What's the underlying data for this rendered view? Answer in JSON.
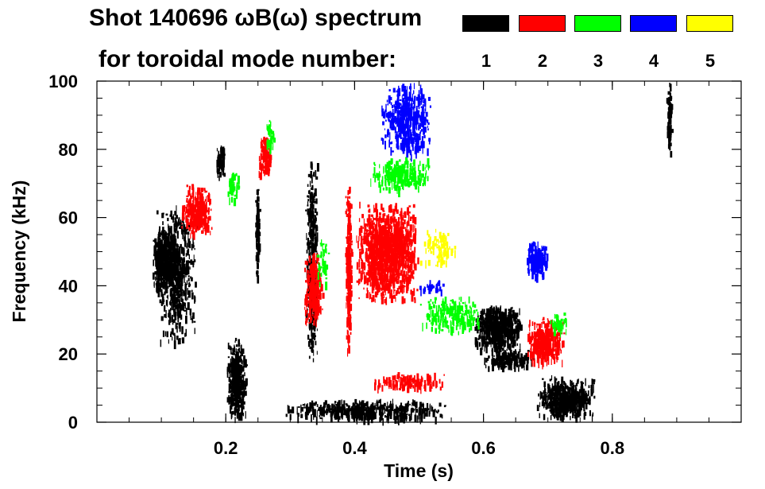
{
  "chart_data": {
    "type": "heatmap",
    "title_line1": "Shot 140696 ωB(ω) spectrum",
    "title_line2": "for toroidal mode number:",
    "xlabel": "Time (s)",
    "ylabel": "Frequency (kHz)",
    "xlim": [
      0.0,
      1.0
    ],
    "ylim": [
      0,
      100
    ],
    "x_ticks": [
      {
        "value": 0.2,
        "label": "0.2"
      },
      {
        "value": 0.4,
        "label": "0.4"
      },
      {
        "value": 0.6,
        "label": "0.6"
      },
      {
        "value": 0.8,
        "label": "0.8"
      }
    ],
    "y_ticks": [
      {
        "value": 0,
        "label": "0"
      },
      {
        "value": 20,
        "label": "20"
      },
      {
        "value": 40,
        "label": "40"
      },
      {
        "value": 60,
        "label": "60"
      },
      {
        "value": 80,
        "label": "80"
      },
      {
        "value": 100,
        "label": "100"
      }
    ],
    "legend": [
      {
        "mode": "1",
        "color": "#000000"
      },
      {
        "mode": "2",
        "color": "#ff0000"
      },
      {
        "mode": "3",
        "color": "#00ff00"
      },
      {
        "mode": "4",
        "color": "#0000ff"
      },
      {
        "mode": "5",
        "color": "#ffff00"
      }
    ],
    "series": [
      {
        "mode": 1,
        "color": "#000000",
        "regions": [
          {
            "t": [
              0.085,
              0.125
            ],
            "f": [
              38,
              58
            ],
            "density": 0.85,
            "name": "n1-blob-48khz"
          },
          {
            "t": [
              0.09,
              0.155
            ],
            "f": [
              22,
              66
            ],
            "density": 0.25,
            "name": "n1-tail-48khz"
          },
          {
            "t": [
              0.185,
              0.197
            ],
            "f": [
              72,
              82
            ],
            "density": 0.9,
            "name": "n1-78khz"
          },
          {
            "t": [
              0.2,
              0.232
            ],
            "f": [
              1,
              25
            ],
            "density": 0.75,
            "name": "n1-chirp-0.2s"
          },
          {
            "t": [
              0.245,
              0.252
            ],
            "f": [
              42,
              70
            ],
            "density": 0.8,
            "name": "n1-line-0.25s"
          },
          {
            "t": [
              0.323,
              0.343
            ],
            "f": [
              15,
              80
            ],
            "density": 0.4,
            "name": "n1-line-0.33s"
          },
          {
            "t": [
              0.29,
              0.55
            ],
            "f": [
              1,
              7
            ],
            "density": 0.45,
            "name": "n1-low-band"
          },
          {
            "t": [
              0.585,
              0.66
            ],
            "f": [
              21,
              35
            ],
            "density": 0.8,
            "name": "n1-27khz"
          },
          {
            "t": [
              0.6,
              0.68
            ],
            "f": [
              16,
              22
            ],
            "density": 0.5,
            "name": "n1-19khz"
          },
          {
            "t": [
              0.68,
              0.775
            ],
            "f": [
              1,
              14
            ],
            "density": 0.6,
            "name": "n1-chirp-0.7s"
          },
          {
            "t": [
              0.883,
              0.892
            ],
            "f": [
              78,
              100
            ],
            "density": 0.6,
            "name": "n1-line-0.89s"
          }
        ]
      },
      {
        "mode": 2,
        "color": "#ff0000",
        "regions": [
          {
            "t": [
              0.13,
              0.18
            ],
            "f": [
              55,
              70
            ],
            "density": 0.55,
            "name": "n2-63khz"
          },
          {
            "t": [
              0.25,
              0.27
            ],
            "f": [
              72,
              85
            ],
            "density": 0.6,
            "name": "n2-78khz"
          },
          {
            "t": [
              0.32,
              0.35
            ],
            "f": [
              28,
              50
            ],
            "density": 0.6,
            "name": "n2-40khz"
          },
          {
            "t": [
              0.385,
              0.395
            ],
            "f": [
              20,
              70
            ],
            "density": 0.7,
            "name": "n2-line-0.39s"
          },
          {
            "t": [
              0.4,
              0.5
            ],
            "f": [
              35,
              65
            ],
            "density": 0.6,
            "name": "n2-main-48khz"
          },
          {
            "t": [
              0.42,
              0.55
            ],
            "f": [
              10,
              15
            ],
            "density": 0.3,
            "name": "n2-12khz"
          },
          {
            "t": [
              0.665,
              0.725
            ],
            "f": [
              17,
              31
            ],
            "density": 0.65,
            "name": "n2-25khz"
          }
        ]
      },
      {
        "mode": 3,
        "color": "#00ff00",
        "regions": [
          {
            "t": [
              0.2,
              0.22
            ],
            "f": [
              65,
              75
            ],
            "density": 0.35,
            "name": "n3-70khz"
          },
          {
            "t": [
              0.26,
              0.275
            ],
            "f": [
              80,
              90
            ],
            "density": 0.4,
            "name": "n3-85khz"
          },
          {
            "t": [
              0.34,
              0.36
            ],
            "f": [
              40,
              55
            ],
            "density": 0.2,
            "name": "n3-48khz"
          },
          {
            "t": [
              0.42,
              0.52
            ],
            "f": [
              68,
              78
            ],
            "density": 0.35,
            "name": "n3-72khz"
          },
          {
            "t": [
              0.5,
              0.6
            ],
            "f": [
              26,
              38
            ],
            "density": 0.25,
            "name": "n3-32khz"
          },
          {
            "t": [
              0.7,
              0.73
            ],
            "f": [
              26,
              33
            ],
            "density": 0.3,
            "name": "n3-29khz"
          }
        ]
      },
      {
        "mode": 4,
        "color": "#0000ff",
        "regions": [
          {
            "t": [
              0.44,
              0.52
            ],
            "f": [
              78,
              100
            ],
            "density": 0.4,
            "name": "n4-chirp-90khz"
          },
          {
            "t": [
              0.665,
              0.7
            ],
            "f": [
              42,
              54
            ],
            "density": 0.6,
            "name": "n4-48khz"
          },
          {
            "t": [
              0.5,
              0.54
            ],
            "f": [
              38,
              42
            ],
            "density": 0.25,
            "name": "n4-40khz"
          }
        ]
      },
      {
        "mode": 5,
        "color": "#ffff00",
        "regions": [
          {
            "t": [
              0.5,
              0.56
            ],
            "f": [
              45,
              58
            ],
            "density": 0.15,
            "name": "n5-50khz"
          }
        ]
      }
    ]
  }
}
